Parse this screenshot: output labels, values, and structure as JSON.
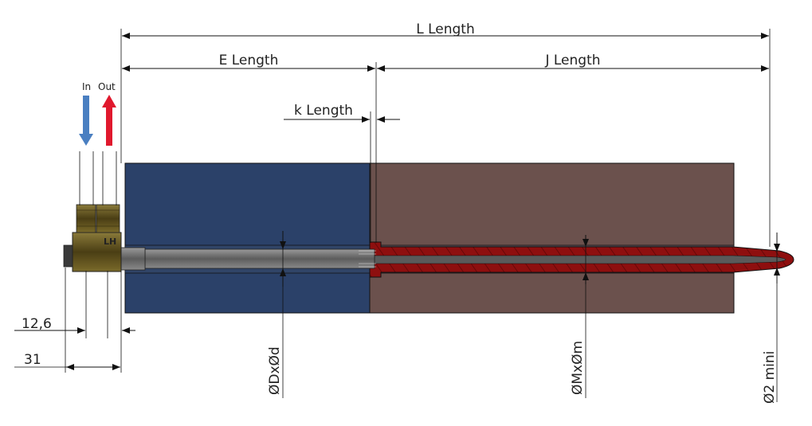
{
  "labels": {
    "l_length": "L Length",
    "e_length": "E Length",
    "j_length": "J Length",
    "k_length": "k Length",
    "in": "In",
    "out": "Out",
    "dim_126": "12,6",
    "dim_31": "31",
    "diam_d": "ØDxØd",
    "diam_m": "ØMxØm",
    "diam_2": "Ø2 mini",
    "fitting_mark": "LH"
  },
  "colors": {
    "in_arrow": "#4a7fc1",
    "out_arrow": "#e0182d",
    "blue_block": "#2b4169",
    "brown_block": "#6b514d",
    "red_tube": "#8e0f0f",
    "brass": "#6a5a22",
    "steel": "#6f6f6f"
  },
  "icons": {
    "in_arrow": "arrow-down-icon",
    "out_arrow": "arrow-up-icon"
  }
}
